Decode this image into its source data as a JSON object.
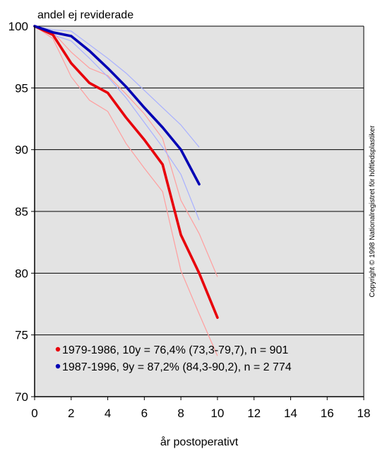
{
  "chart_data": {
    "type": "line",
    "ylabel": "andel ej reviderade",
    "xlabel": "år postoperativt",
    "xlim": [
      0,
      18
    ],
    "ylim": [
      70,
      100
    ],
    "x_ticks": [
      "0",
      "2",
      "4",
      "6",
      "8",
      "10",
      "12",
      "14",
      "16",
      "18"
    ],
    "y_ticks": [
      "70",
      "75",
      "80",
      "85",
      "90",
      "95",
      "100"
    ],
    "grid": "horizontal",
    "legend_position": "bottom-left",
    "copyright": "Copyright © 1998 Nationalregistret för höftledsplastiker",
    "series": [
      {
        "name": "1979-1986, 10y = 76,4% (73,3-79,7), n = 901",
        "color": "#e8000b",
        "x": [
          0,
          1,
          2,
          3,
          4,
          5,
          6,
          7,
          8,
          9,
          10
        ],
        "y": [
          100,
          99.3,
          97.0,
          95.4,
          94.6,
          92.6,
          90.8,
          88.8,
          83.1,
          80.0,
          76.4
        ],
        "ci_lower": [
          100,
          99.0,
          95.9,
          94.0,
          93.1,
          90.5,
          88.5,
          86.6,
          80.2,
          76.7,
          73.3
        ],
        "ci_upper": [
          100,
          99.5,
          97.9,
          96.6,
          96.0,
          94.5,
          92.9,
          90.9,
          85.9,
          83.2,
          79.7
        ]
      },
      {
        "name": "1987-1996, 9y = 87,2% (84,3-90,2), n = 2 774",
        "color": "#0000b4",
        "x": [
          0,
          1,
          2,
          3,
          4,
          5,
          6,
          7,
          8,
          9
        ],
        "y": [
          100,
          99.5,
          99.2,
          98.0,
          96.6,
          95.1,
          93.4,
          91.8,
          90.0,
          87.2
        ],
        "ci_lower": [
          100,
          99.3,
          98.8,
          97.4,
          95.9,
          94.2,
          92.2,
          90.2,
          88.0,
          84.3
        ],
        "ci_upper": [
          100,
          99.7,
          99.6,
          98.5,
          97.4,
          96.2,
          94.8,
          93.4,
          92.0,
          90.2
        ]
      }
    ]
  }
}
